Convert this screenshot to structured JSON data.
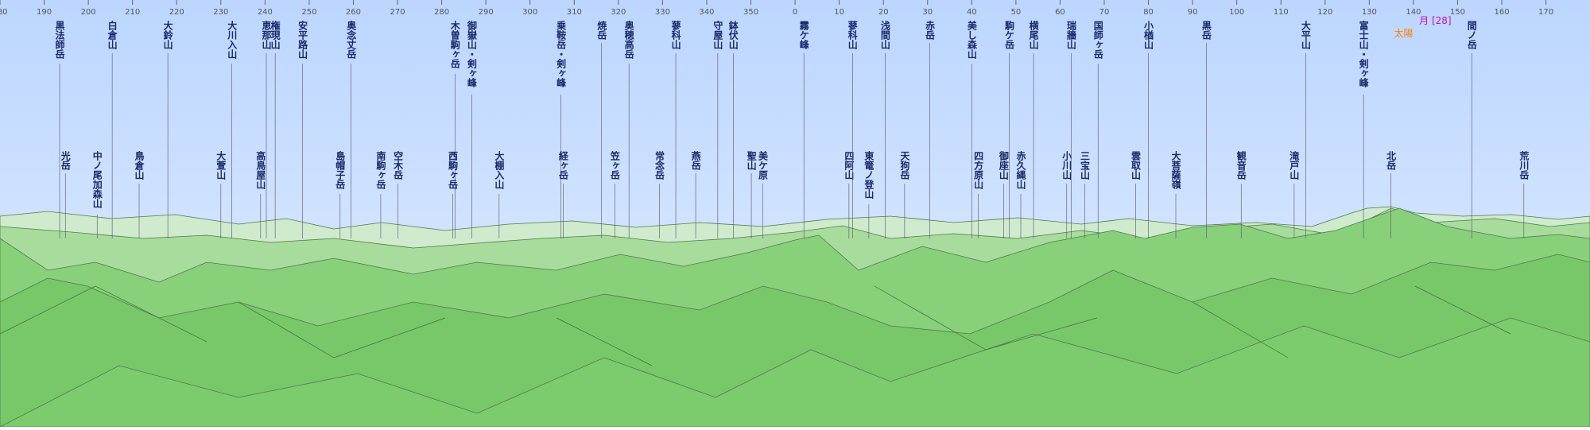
{
  "azimuth_ticks": [
    180,
    190,
    200,
    210,
    220,
    230,
    240,
    250,
    260,
    270,
    280,
    290,
    300,
    310,
    320,
    330,
    340,
    350,
    0,
    10,
    20,
    30,
    40,
    50,
    60,
    70,
    80,
    90,
    100,
    110,
    120,
    130,
    140,
    150,
    160,
    170
  ],
  "peaks": [
    {
      "name": "黒法師岳",
      "azimuth": 193.5
    },
    {
      "name": "光岳",
      "azimuth": 194.8
    },
    {
      "name": "白倉山",
      "azimuth": 205.4
    },
    {
      "name": "中ノ尾加森山",
      "azimuth": 202
    },
    {
      "name": "大鈴山",
      "azimuth": 218
    },
    {
      "name": "鳥倉山",
      "azimuth": 211.5
    },
    {
      "name": "大川入山",
      "azimuth": 232.5
    },
    {
      "name": "大萱山",
      "azimuth": 230
    },
    {
      "name": "恵那山",
      "azimuth": 240.3
    },
    {
      "name": "高鳥屋山",
      "azimuth": 239
    },
    {
      "name": "権現山",
      "azimuth": 242.3
    },
    {
      "name": "島帽子岳",
      "azimuth": 257
    },
    {
      "name": "安平路山",
      "azimuth": 248.5
    },
    {
      "name": "南駒ヶ岳",
      "azimuth": 266.2
    },
    {
      "name": "奥念丈岳",
      "azimuth": 259.5
    },
    {
      "name": "空木岳",
      "azimuth": 270.1
    },
    {
      "name": "木曽駒ヶ岳",
      "azimuth": 283
    },
    {
      "name": "西駒ヶ岳",
      "azimuth": 282.5
    },
    {
      "name": "御嶽山・剣ヶ峰",
      "azimuth": 286.8
    },
    {
      "name": "大棚入山",
      "azimuth": 293
    },
    {
      "name": "乗鞍岳・剣ヶ峰",
      "azimuth": 307
    },
    {
      "name": "経ヶ岳",
      "azimuth": 307.5
    },
    {
      "name": "焼岳",
      "azimuth": 316.2
    },
    {
      "name": "笠ヶ岳",
      "azimuth": 319.2
    },
    {
      "name": "奥穂高岳",
      "azimuth": 322.4
    },
    {
      "name": "常念岳",
      "azimuth": 329.3
    },
    {
      "name": "蓼科山",
      "azimuth": 333
    },
    {
      "name": "燕岳",
      "azimuth": 337.5
    },
    {
      "name": "守屋山",
      "azimuth": 342.5
    },
    {
      "name": "聖山",
      "azimuth": 350.1
    },
    {
      "name": "鉢伏山",
      "azimuth": 346
    },
    {
      "name": "美ケ原",
      "azimuth": 352.7
    },
    {
      "name": "霧ケ峰",
      "azimuth": 2
    },
    {
      "name": "四阿山",
      "azimuth": 12.2
    },
    {
      "name": "蓼科山",
      "azimuth": 13
    },
    {
      "name": "東篭ノ登山",
      "azimuth": 16.7
    },
    {
      "name": "浅間山",
      "azimuth": 20.4
    },
    {
      "name": "天狗岳",
      "azimuth": 24.8
    },
    {
      "name": "赤岳",
      "azimuth": 30.5
    },
    {
      "name": "四方原山",
      "azimuth": 41.5
    },
    {
      "name": "美し森山",
      "azimuth": 40
    },
    {
      "name": "御座山",
      "azimuth": 47.2
    },
    {
      "name": "駒ケ岳",
      "azimuth": 48.5
    },
    {
      "name": "赤久縄山",
      "azimuth": 51.1
    },
    {
      "name": "横尾山",
      "azimuth": 54
    },
    {
      "name": "小川山",
      "azimuth": 61.5
    },
    {
      "name": "瑞牆山",
      "azimuth": 62.5
    },
    {
      "name": "三宝山",
      "azimuth": 65.6
    },
    {
      "name": "国師ヶ岳",
      "azimuth": 68.6
    },
    {
      "name": "雲取山",
      "azimuth": 77.1
    },
    {
      "name": "小楢山",
      "azimuth": 80
    },
    {
      "name": "大菩薩嶺",
      "azimuth": 86.2
    },
    {
      "name": "黒岳",
      "azimuth": 93.1
    },
    {
      "name": "観音岳",
      "azimuth": 101
    },
    {
      "name": "大平山",
      "azimuth": 115.6
    },
    {
      "name": "滝戸山",
      "azimuth": 113
    },
    {
      "name": "富士山・剣ヶ峰",
      "azimuth": 128.7
    },
    {
      "name": "北岳",
      "azimuth": 134.9
    },
    {
      "name": "間ノ岳",
      "azimuth": 153.2
    },
    {
      "name": "荒川岳",
      "azimuth": 165
    }
  ],
  "annotations": [
    {
      "label": "太陽",
      "azimuth": 135.6
    },
    {
      "label": "月 [28]",
      "azimuth": 141.3
    }
  ]
}
